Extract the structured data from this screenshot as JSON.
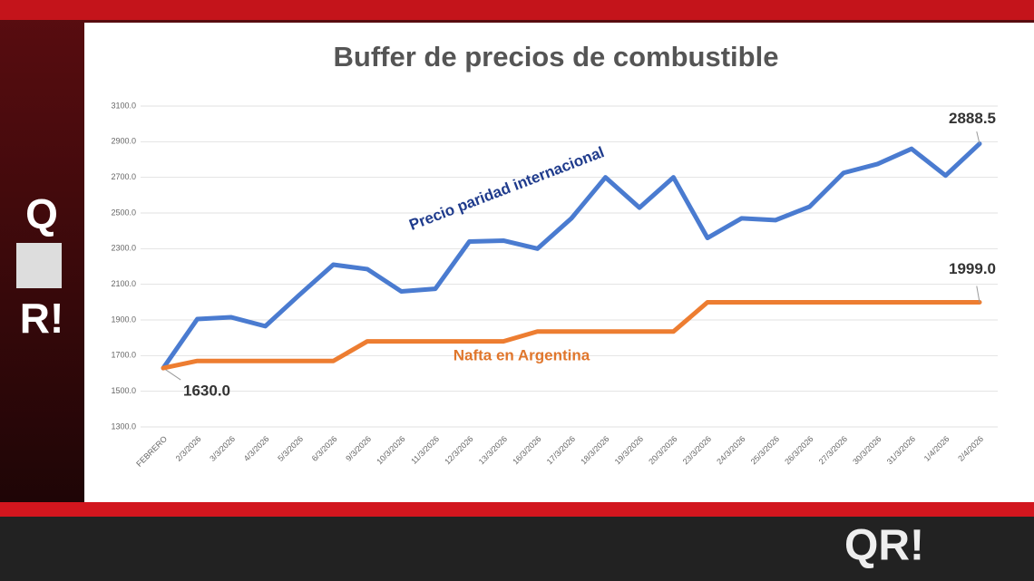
{
  "chart_data": {
    "type": "line",
    "title": "Buffer de precios de combustible",
    "categories": [
      "FEBRERO",
      "2/3/2026",
      "3/3/2026",
      "4/3/2026",
      "5/3/2026",
      "6/3/2026",
      "9/3/2026",
      "10/3/2026",
      "11/3/2026",
      "12/3/2026",
      "13/3/2026",
      "16/3/2026",
      "17/3/2026",
      "18/3/2026",
      "19/3/2026",
      "20/3/2026",
      "23/3/2026",
      "24/3/2026",
      "25/3/2026",
      "26/3/2026",
      "27/3/2026",
      "30/3/2026",
      "31/3/2026",
      "1/4/2026",
      "2/4/2026"
    ],
    "series": [
      {
        "name": "Precio paridad internacional",
        "color": "#4a7bd0",
        "values": [
          1630,
          1905,
          1915,
          1865,
          2040,
          2210,
          2185,
          2060,
          2075,
          2340,
          2345,
          2300,
          2470,
          2700,
          2530,
          2700,
          2360,
          2470,
          2460,
          2535,
          2725,
          2775,
          2860,
          2710,
          2888.5
        ],
        "value_labels": [
          "1630.0",
          null,
          null,
          null,
          null,
          null,
          null,
          null,
          null,
          null,
          null,
          null,
          null,
          null,
          null,
          null,
          null,
          null,
          null,
          null,
          null,
          null,
          null,
          null,
          "2888.5"
        ]
      },
      {
        "name": "Nafta en Argentina",
        "color": "#ed7d31",
        "values": [
          1630,
          1670,
          1670,
          1670,
          1670,
          1670,
          1780,
          1780,
          1780,
          1780,
          1780,
          1835,
          1835,
          1835,
          1835,
          1835,
          1999,
          1999,
          1999,
          1999,
          1999,
          1999,
          1999,
          1999,
          1999
        ],
        "value_labels": [
          null,
          null,
          null,
          null,
          null,
          null,
          null,
          null,
          null,
          null,
          null,
          null,
          null,
          null,
          null,
          null,
          null,
          null,
          null,
          null,
          null,
          null,
          null,
          null,
          "1999.0"
        ]
      }
    ],
    "ylim": [
      1300,
      3100
    ],
    "yticks": [
      {
        "value": 1300,
        "label": "1300.0"
      },
      {
        "value": 1500,
        "label": "1500.0"
      },
      {
        "value": 1700,
        "label": "1700.0"
      },
      {
        "value": 1900,
        "label": "1900.0"
      },
      {
        "value": 2100,
        "label": "2100.0"
      },
      {
        "value": 2300,
        "label": "2300.0"
      },
      {
        "value": 2500,
        "label": "2500.0"
      },
      {
        "value": 2700,
        "label": "2700.0"
      },
      {
        "value": 2900,
        "label": "2900.0"
      },
      {
        "value": 3100,
        "label": "3100.0"
      }
    ],
    "grid": true
  },
  "brand": {
    "left_top": "Q",
    "left_bottom": "R!",
    "corner": "QR!"
  }
}
